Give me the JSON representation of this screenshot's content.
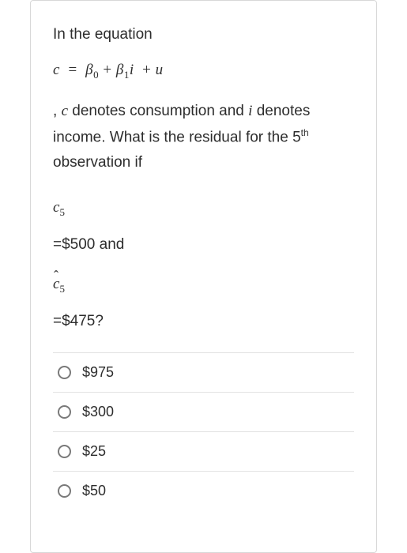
{
  "question": {
    "intro": "In the equation",
    "equation_html": "<span>c</span>&nbsp;&nbsp;<span class='upright'>=</span>&nbsp;&nbsp;<span>β</span><sub>0</sub>&nbsp;<span class='upright'>+</span>&nbsp;<span>β</span><sub>1</sub><span>i</span>&nbsp;&nbsp;<span class='upright'>+</span>&nbsp;<span>u</span>",
    "desc_html": ", <em>c</em> denotes consumption and <em>i</em> denotes income. What is the residual for the 5<sup>th</sup> observation if",
    "c5_html": "c<sub>5</sub>",
    "c5_value": "=$500 and",
    "chat5_html": "<span class='hat'>c</span><sub>5</sub>",
    "chat5_value": "=$475?"
  },
  "options": [
    {
      "label": "$975"
    },
    {
      "label": "$300"
    },
    {
      "label": "$25"
    },
    {
      "label": "$50"
    }
  ],
  "colors": {
    "border": "#d8d8d8",
    "divider": "#e2e2e2",
    "text": "#2d2d2d",
    "radio_border": "#7a7a7a",
    "background": "#ffffff"
  }
}
